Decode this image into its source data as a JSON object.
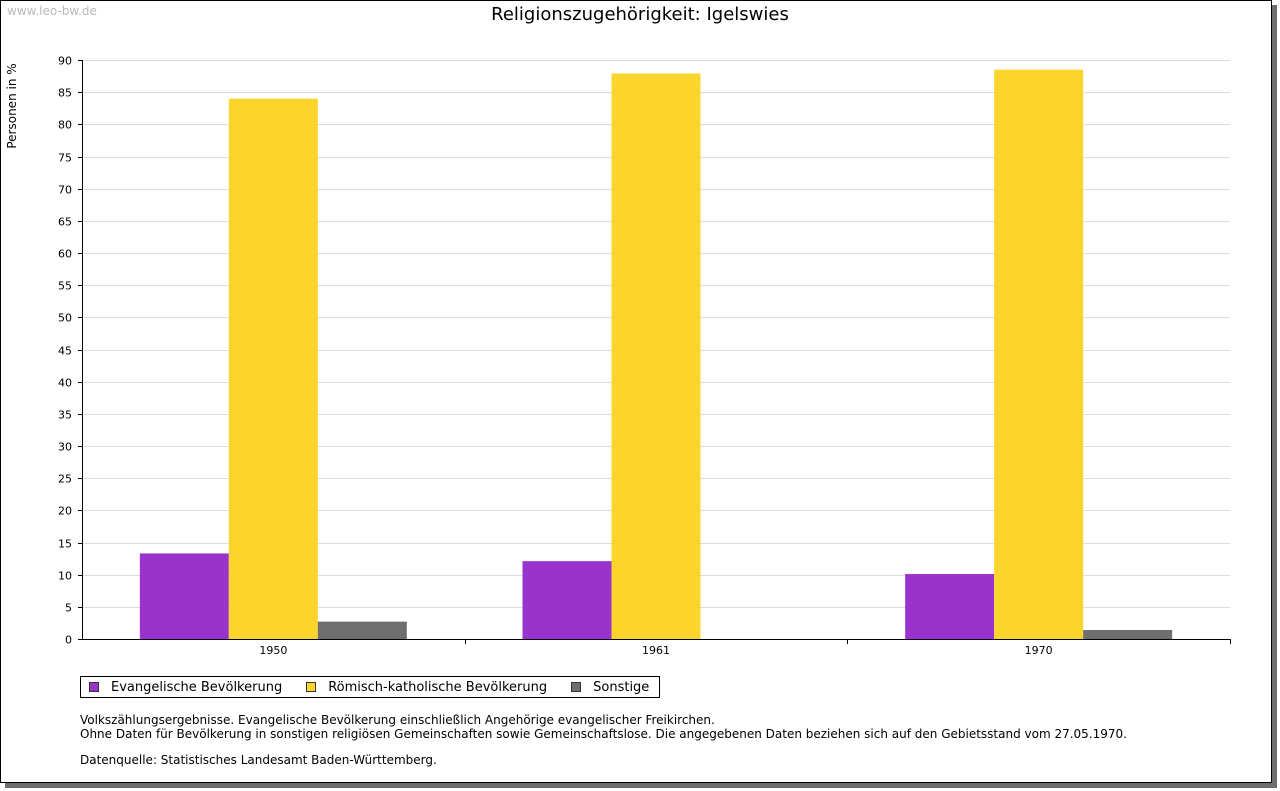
{
  "watermark": "www.leo-bw.de",
  "chart_data": {
    "type": "bar",
    "title": "Religionszugehörigkeit: Igelswies",
    "xlabel": "",
    "ylabel": "Personen in %",
    "ylim": [
      0,
      90
    ],
    "ytick_step": 5,
    "grid": true,
    "legend_position": "bottom-left",
    "categories": [
      "1950",
      "1961",
      "1970"
    ],
    "series": [
      {
        "name": "Evangelische Bevölkerung",
        "color": "#9933cc",
        "values": [
          13.3,
          12.1,
          10.1
        ]
      },
      {
        "name": "Römisch-katholische Bevölkerung",
        "color": "#fbd42c",
        "values": [
          84.0,
          87.9,
          88.5
        ]
      },
      {
        "name": "Sonstige",
        "color": "#6e6e6e",
        "values": [
          2.7,
          0.0,
          1.4
        ]
      }
    ]
  },
  "notes": {
    "line1": "Volkszählungsergebnisse. Evangelische Bevölkerung einschließlich Angehörige evangelischer Freikirchen.",
    "line2": "Ohne Daten für Bevölkerung in sonstigen religiösen Gemeinschaften sowie Gemeinschaftslose. Die angegebenen Daten beziehen sich auf den Gebietsstand vom 27.05.1970.",
    "source": "Datenquelle: Statistisches Landesamt Baden-Württemberg."
  }
}
